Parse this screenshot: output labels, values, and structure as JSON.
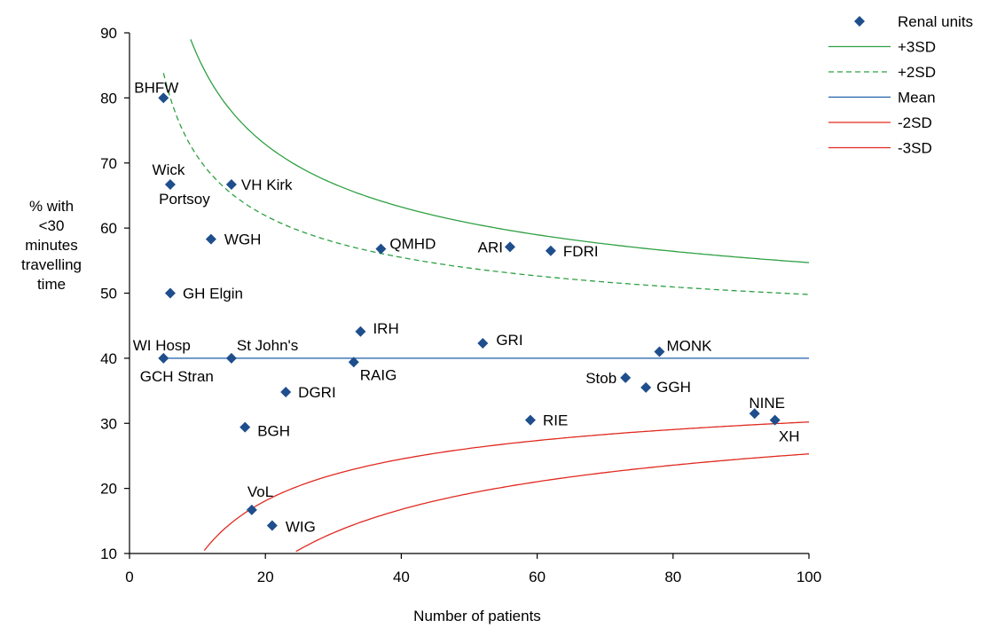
{
  "chart_data": {
    "type": "scatter",
    "title": "",
    "xlabel": "Number of patients",
    "ylabel_lines": [
      "% with",
      "<30",
      "minutes",
      "travelling",
      "time"
    ],
    "xlim": [
      0,
      100
    ],
    "ylim": [
      10,
      90
    ],
    "x_ticks": [
      0,
      20,
      40,
      60,
      80,
      100
    ],
    "y_ticks": [
      10,
      20,
      30,
      40,
      50,
      60,
      70,
      80,
      90
    ],
    "grid": false,
    "legend_position": "top-right",
    "mean": 40,
    "colors": {
      "points": "#1f4e8c",
      "plus_sd": "#2ea043",
      "mean": "#1f5fa8",
      "minus_sd": "#e02a20"
    },
    "legend": [
      {
        "key": "points",
        "label": "Renal units"
      },
      {
        "key": "plus3",
        "label": "+3SD"
      },
      {
        "key": "plus2",
        "label": "+2SD"
      },
      {
        "key": "mean",
        "label": "Mean"
      },
      {
        "key": "minus2",
        "label": "-2SD"
      },
      {
        "key": "minus3",
        "label": "-3SD"
      }
    ],
    "points": [
      {
        "label": "BHFW",
        "x": 5,
        "y": 80
      },
      {
        "label": "Wick",
        "x": 6,
        "y": 66.7
      },
      {
        "label": "Portsoy",
        "x": 6,
        "y": 66.7
      },
      {
        "label": "VH Kirk",
        "x": 15,
        "y": 66.7
      },
      {
        "label": "WGH",
        "x": 12,
        "y": 58.3
      },
      {
        "label": "GH Elgin",
        "x": 6,
        "y": 50
      },
      {
        "label": "WI Hosp",
        "x": 5,
        "y": 40
      },
      {
        "label": "GCH Stran",
        "x": 5,
        "y": 40
      },
      {
        "label": "St John's",
        "x": 15,
        "y": 40
      },
      {
        "label": "QMHD",
        "x": 37,
        "y": 56.8
      },
      {
        "label": "ARI",
        "x": 56,
        "y": 57.1
      },
      {
        "label": "FDRI",
        "x": 62,
        "y": 56.5
      },
      {
        "label": "IRH",
        "x": 34,
        "y": 44.1
      },
      {
        "label": "GRI",
        "x": 52,
        "y": 42.3
      },
      {
        "label": "RAIG",
        "x": 33,
        "y": 39.4
      },
      {
        "label": "DGRI",
        "x": 23,
        "y": 34.8
      },
      {
        "label": "MONK",
        "x": 78,
        "y": 41
      },
      {
        "label": "Stob",
        "x": 73,
        "y": 37
      },
      {
        "label": "GGH",
        "x": 76,
        "y": 35.5
      },
      {
        "label": "BGH",
        "x": 17,
        "y": 29.4
      },
      {
        "label": "RIE",
        "x": 59,
        "y": 30.5
      },
      {
        "label": "NINE",
        "x": 92,
        "y": 31.5
      },
      {
        "label": "XH",
        "x": 95,
        "y": 30.5
      },
      {
        "label": "VoL",
        "x": 18,
        "y": 16.7
      },
      {
        "label": "WIG",
        "x": 21,
        "y": 14.3
      }
    ],
    "marker_points": [
      [
        5,
        80
      ],
      [
        6,
        66.7
      ],
      [
        15,
        66.7
      ],
      [
        12,
        58.3
      ],
      [
        6,
        50
      ],
      [
        5,
        40
      ],
      [
        15,
        40
      ],
      [
        37,
        56.8
      ],
      [
        56,
        57.1
      ],
      [
        62,
        56.5
      ],
      [
        34,
        44.1
      ],
      [
        52,
        42.3
      ],
      [
        33,
        39.4
      ],
      [
        23,
        34.8
      ],
      [
        78,
        41
      ],
      [
        73,
        37
      ],
      [
        76,
        35.5
      ],
      [
        17,
        29.4
      ],
      [
        59,
        30.5
      ],
      [
        92,
        31.5
      ],
      [
        95,
        30.5
      ],
      [
        18,
        16.7
      ],
      [
        21,
        14.3
      ]
    ]
  }
}
